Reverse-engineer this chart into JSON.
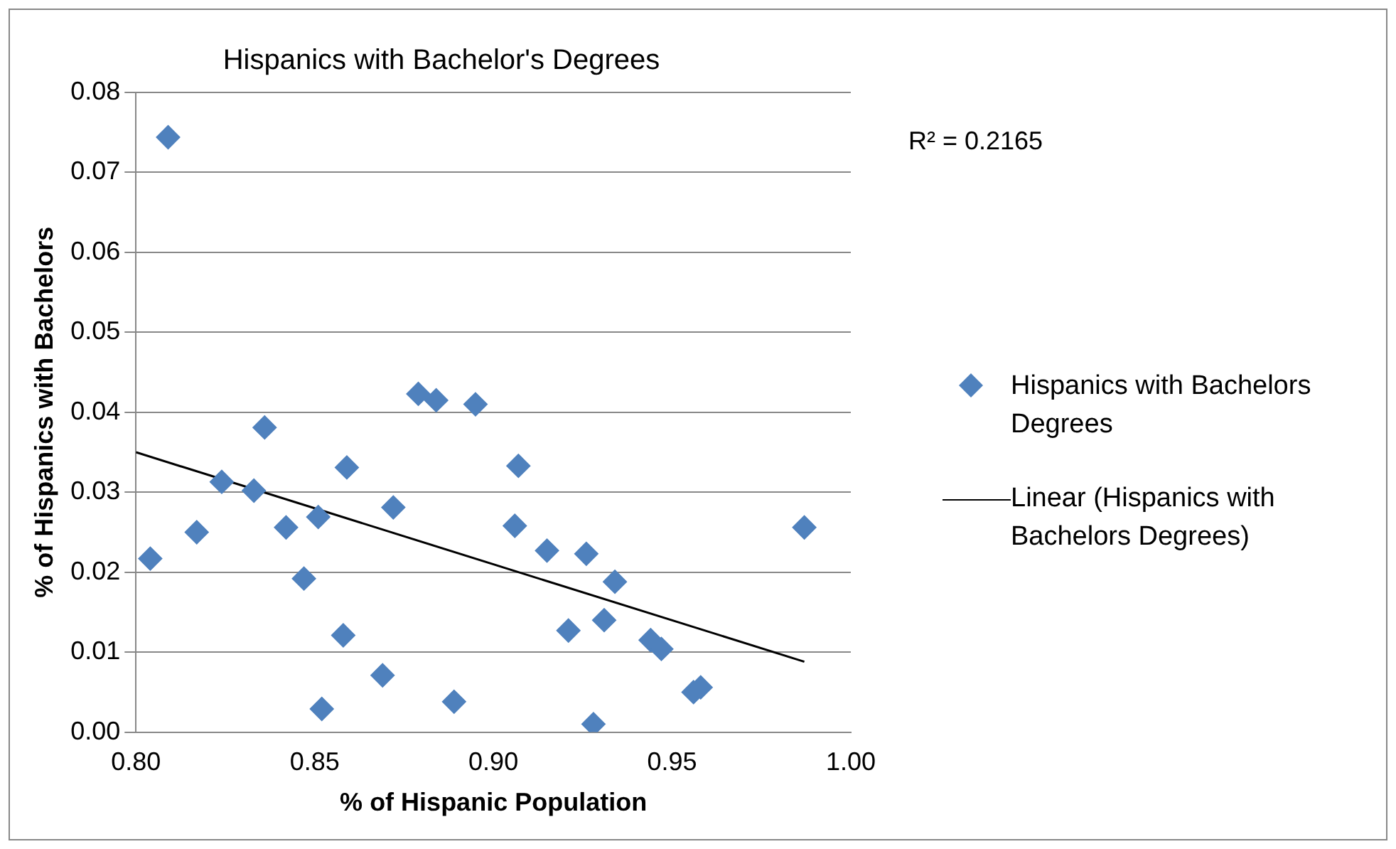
{
  "chart_data": {
    "type": "scatter",
    "title": "Hispanics with Bachelor's Degrees",
    "xlabel": "% of Hispanic Population",
    "ylabel": "% of Hispanics with Bachelors",
    "annotations": [
      "R² = 0.2165"
    ],
    "xlim": [
      0.8,
      1.0
    ],
    "xticks": [
      {
        "value": 0.8,
        "label": "0.80"
      },
      {
        "value": 0.85,
        "label": "0.85"
      },
      {
        "value": 0.9,
        "label": "0.90"
      },
      {
        "value": 0.95,
        "label": "0.95"
      },
      {
        "value": 1.0,
        "label": "1.00"
      }
    ],
    "ylim": [
      0,
      0.08
    ],
    "yticks": [
      {
        "value": 0,
        "label": "0.00"
      },
      {
        "value": 0.01,
        "label": "0.01"
      },
      {
        "value": 0.02,
        "label": "0.02"
      },
      {
        "value": 0.03,
        "label": "0.03"
      },
      {
        "value": 0.04,
        "label": "0.04"
      },
      {
        "value": 0.05,
        "label": "0.05"
      },
      {
        "value": 0.06,
        "label": "0.06"
      },
      {
        "value": 0.07,
        "label": "0.07"
      },
      {
        "value": 0.08,
        "label": "0.08"
      }
    ],
    "grid": "y",
    "legend": "right",
    "marker": "diamond",
    "series": [
      {
        "name": "Hispanics with Bachelors Degrees",
        "color": "#4f81bd",
        "x": [
          0.804,
          0.809,
          0.817,
          0.824,
          0.833,
          0.836,
          0.842,
          0.847,
          0.851,
          0.852,
          0.858,
          0.859,
          0.869,
          0.872,
          0.879,
          0.884,
          0.889,
          0.895,
          0.906,
          0.907,
          0.915,
          0.921,
          0.926,
          0.928,
          0.931,
          0.934,
          0.944,
          0.947,
          0.956,
          0.958,
          0.987
        ],
        "values": [
          0.0217,
          0.0744,
          0.025,
          0.0313,
          0.0302,
          0.0381,
          0.0256,
          0.0192,
          0.0269,
          0.0029,
          0.0121,
          0.0331,
          0.0071,
          0.0281,
          0.0423,
          0.0415,
          0.0038,
          0.041,
          0.0258,
          0.0333,
          0.0227,
          0.0127,
          0.0223,
          0.001,
          0.014,
          0.0188,
          0.0115,
          0.0104,
          0.005,
          0.0056,
          0.0256
        ]
      },
      {
        "name": "Linear (Hispanics with Bachelors Degrees)",
        "type": "line",
        "color": "#000000",
        "x": [
          0.8,
          0.987
        ],
        "values": [
          0.035,
          0.0088
        ],
        "marker": "none"
      }
    ]
  }
}
